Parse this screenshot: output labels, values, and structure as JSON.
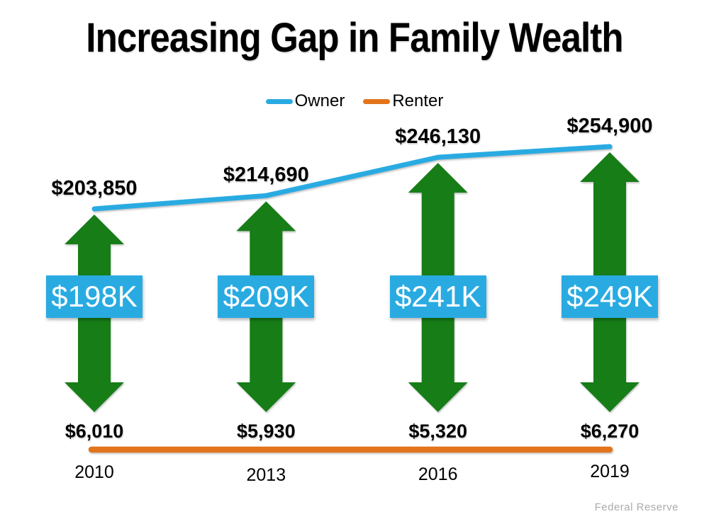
{
  "title": "Increasing Gap in Family Wealth",
  "legend": {
    "owner": "Owner",
    "renter": "Renter"
  },
  "source": "Federal Reserve",
  "colors": {
    "owner_line": "#29ABE2",
    "renter_line": "#E2741C",
    "gap_arrow": "#177D17",
    "gap_box_bg": "#29ABE2",
    "gap_box_text": "#FFFFFF",
    "label_text": "#000000",
    "source_text": "#ABABAB"
  },
  "chart_data": {
    "type": "line",
    "title": "Increasing Gap in Family Wealth",
    "categories": [
      "2010",
      "2013",
      "2016",
      "2019"
    ],
    "series": [
      {
        "name": "Owner",
        "color": "#29ABE2",
        "values": [
          203850,
          214690,
          246130,
          254900
        ],
        "labels": [
          "$203,850",
          "$214,690",
          "$246,130",
          "$254,900"
        ]
      },
      {
        "name": "Renter",
        "color": "#E2741C",
        "values": [
          6010,
          5930,
          5320,
          6270
        ],
        "labels": [
          "$6,010",
          "$5,930",
          "$5,320",
          "$6,270"
        ]
      }
    ],
    "gap_labels": [
      "$198K",
      "$209K",
      "$241K",
      "$249K"
    ],
    "legend_position": "top",
    "grid": false,
    "source": "Federal Reserve"
  }
}
